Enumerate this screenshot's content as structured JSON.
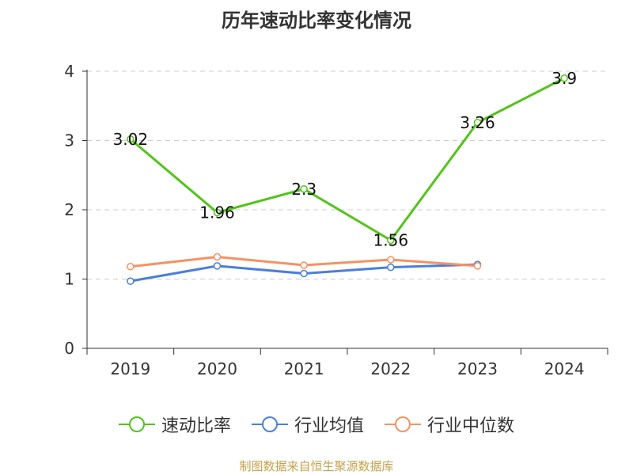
{
  "title": "历年速动比率变化情况",
  "source_text": "制图数据来自恒生聚源数据库",
  "colors": {
    "series_primary": "#52c41a",
    "series_avg": "#4a7fdc",
    "series_median": "#f59263",
    "source": "#c8a04a",
    "grid": "#cccccc",
    "axis": "#333333"
  },
  "chart_data": {
    "type": "line",
    "title": "历年速动比率变化情况",
    "categories": [
      "2019",
      "2020",
      "2021",
      "2022",
      "2023",
      "2024"
    ],
    "ylim": [
      0,
      4
    ],
    "yticks": [
      0,
      1,
      2,
      3,
      4
    ],
    "grid": true,
    "legend_position": "bottom",
    "series": [
      {
        "name": "速动比率",
        "values": [
          3.02,
          1.96,
          2.3,
          1.56,
          3.26,
          3.9
        ],
        "labels": [
          "3.02",
          "1.96",
          "2.3",
          "1.56",
          "3.26",
          "3.9"
        ]
      },
      {
        "name": "行业均值",
        "values": [
          0.97,
          1.19,
          1.08,
          1.17,
          1.21,
          null
        ]
      },
      {
        "name": "行业中位数",
        "values": [
          1.18,
          1.32,
          1.2,
          1.28,
          1.19,
          null
        ]
      }
    ]
  }
}
